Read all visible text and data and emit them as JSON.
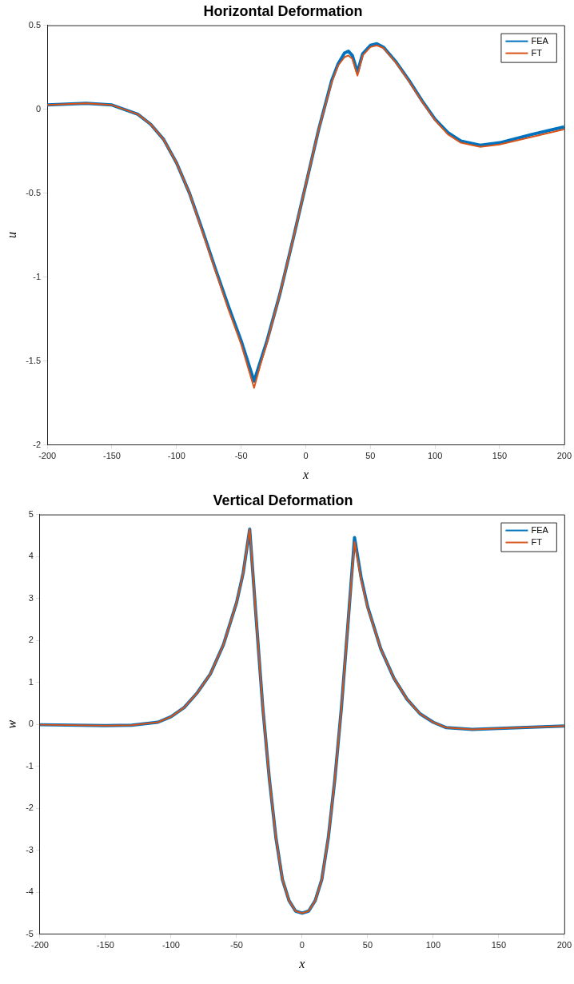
{
  "chart_data": [
    {
      "type": "line",
      "title": "Horizontal Deformation",
      "xlabel": "x",
      "ylabel": "u",
      "legend": "top right",
      "x": [
        -200,
        -170,
        -150,
        -130,
        -120,
        -110,
        -100,
        -90,
        -80,
        -70,
        -60,
        -50,
        -40,
        -35,
        -30,
        -20,
        -10,
        0,
        10,
        20,
        25,
        30,
        33,
        36,
        40,
        44,
        50,
        55,
        60,
        70,
        80,
        90,
        100,
        110,
        120,
        135,
        150,
        175,
        200
      ],
      "xlim": [
        -200,
        200
      ],
      "xticks": [
        -200,
        -150,
        -100,
        -50,
        0,
        50,
        100,
        150,
        200
      ],
      "ylim": [
        -2,
        0.5
      ],
      "yticks": [
        -2,
        -1.5,
        -1,
        -0.5,
        0,
        0.5
      ],
      "series": [
        {
          "name": "FEA",
          "color": "#0072bd",
          "values": [
            0.025,
            0.035,
            0.025,
            -0.03,
            -0.09,
            -0.18,
            -0.32,
            -0.5,
            -0.72,
            -0.95,
            -1.17,
            -1.38,
            -1.62,
            -1.5,
            -1.38,
            -1.1,
            -0.78,
            -0.45,
            -0.12,
            0.17,
            0.27,
            0.335,
            0.345,
            0.32,
            0.22,
            0.33,
            0.38,
            0.39,
            0.37,
            0.28,
            0.17,
            0.05,
            -0.06,
            -0.14,
            -0.19,
            -0.215,
            -0.2,
            -0.15,
            -0.105
          ]
        },
        {
          "name": "FT",
          "color": "#d95319",
          "values": [
            0.025,
            0.035,
            0.025,
            -0.03,
            -0.09,
            -0.18,
            -0.32,
            -0.5,
            -0.73,
            -0.96,
            -1.19,
            -1.4,
            -1.66,
            -1.52,
            -1.39,
            -1.1,
            -0.78,
            -0.45,
            -0.12,
            0.16,
            0.26,
            0.31,
            0.32,
            0.3,
            0.2,
            0.32,
            0.37,
            0.38,
            0.365,
            0.275,
            0.165,
            0.045,
            -0.065,
            -0.15,
            -0.2,
            -0.225,
            -0.21,
            -0.165,
            -0.12
          ]
        }
      ]
    },
    {
      "type": "line",
      "title": "Vertical Deformation",
      "xlabel": "x",
      "ylabel": "w",
      "legend": "top right",
      "x": [
        -200,
        -150,
        -130,
        -110,
        -100,
        -90,
        -80,
        -70,
        -60,
        -50,
        -45,
        -40,
        -35,
        -30,
        -25,
        -20,
        -15,
        -10,
        -5,
        0,
        5,
        10,
        15,
        20,
        25,
        30,
        35,
        40,
        45,
        50,
        60,
        70,
        80,
        90,
        100,
        110,
        130,
        150,
        175,
        200
      ],
      "xlim": [
        -200,
        200
      ],
      "xticks": [
        -200,
        -150,
        -100,
        -50,
        0,
        50,
        100,
        150,
        200
      ],
      "ylim": [
        -5,
        5
      ],
      "yticks": [
        -5,
        -4,
        -3,
        -2,
        -1,
        0,
        1,
        2,
        3,
        4,
        5
      ],
      "series": [
        {
          "name": "FEA",
          "color": "#0072bd",
          "values": [
            -0.01,
            -0.03,
            -0.02,
            0.05,
            0.18,
            0.4,
            0.75,
            1.2,
            1.9,
            2.9,
            3.6,
            4.65,
            2.5,
            0.4,
            -1.3,
            -2.7,
            -3.7,
            -4.2,
            -4.45,
            -4.5,
            -4.45,
            -4.2,
            -3.7,
            -2.7,
            -1.3,
            0.4,
            2.4,
            4.45,
            3.5,
            2.8,
            1.8,
            1.1,
            0.6,
            0.25,
            0.05,
            -0.08,
            -0.12,
            -0.1,
            -0.07,
            -0.04
          ]
        },
        {
          "name": "FT",
          "color": "#d95319",
          "values": [
            -0.01,
            -0.03,
            -0.02,
            0.05,
            0.18,
            0.4,
            0.75,
            1.2,
            1.9,
            2.9,
            3.6,
            4.65,
            2.5,
            0.4,
            -1.3,
            -2.7,
            -3.7,
            -4.2,
            -4.45,
            -4.5,
            -4.45,
            -4.2,
            -3.7,
            -2.7,
            -1.3,
            0.4,
            2.4,
            4.35,
            3.45,
            2.78,
            1.8,
            1.1,
            0.6,
            0.25,
            0.05,
            -0.08,
            -0.12,
            -0.1,
            -0.07,
            -0.04
          ]
        }
      ]
    }
  ]
}
